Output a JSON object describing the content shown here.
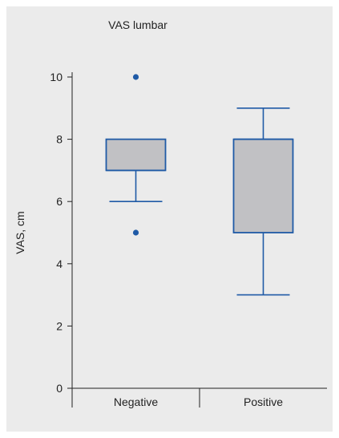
{
  "chart_data": {
    "type": "box",
    "title": "VAS lumbar",
    "xlabel": "",
    "ylabel": "VAS, cm",
    "ylim": [
      0,
      10
    ],
    "yticks": [
      0,
      2,
      4,
      6,
      8,
      10
    ],
    "categories": [
      "Negative",
      "Positive"
    ],
    "boxes": [
      {
        "category": "Negative",
        "whisker_low": 6,
        "q1": 7,
        "median": 7,
        "q3": 8,
        "whisker_high": 8,
        "outliers": [
          5,
          10
        ]
      },
      {
        "category": "Positive",
        "whisker_low": 3,
        "q1": 5,
        "median": 8,
        "q3": 8,
        "whisker_high": 9,
        "outliers": []
      }
    ],
    "grid": false,
    "colors": {
      "box_fill": "#c1c1c4",
      "box_stroke": "#1f5aa6",
      "outlier": "#1f5aa6",
      "axis": "#222222"
    }
  }
}
